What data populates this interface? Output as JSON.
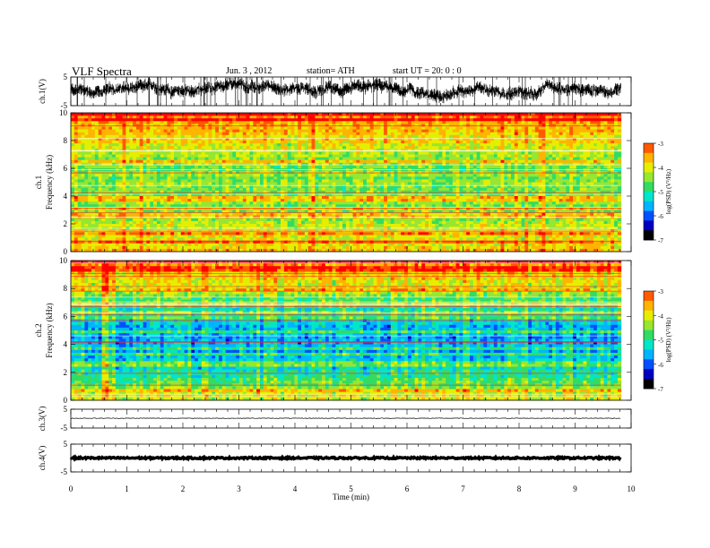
{
  "header": {
    "title": "VLF  Spectra",
    "date": "Jun. 3  , 2012",
    "station": "station= ATH",
    "start": "start  UT  =   20: 0  : 0"
  },
  "colors": {
    "scale": [
      "#000000",
      "#0000c0",
      "#0050ff",
      "#00b4ff",
      "#00e6c8",
      "#32dc64",
      "#96e632",
      "#e6ee00",
      "#ffb400",
      "#ff5a00",
      "#ff0000",
      "#ff8c8c",
      "#ffd2d2",
      "#ffffff"
    ]
  },
  "chart_data": [
    {
      "type": "line",
      "panel": "ch1-waveform",
      "ylabel": "ch.1(V)",
      "yticks": [
        "5",
        "-5"
      ],
      "ylim": [
        -5,
        5
      ],
      "xlim": [
        0,
        10
      ],
      "description_values": {
        "signal_range": [
          -5,
          5
        ],
        "mean_level": 0.5
      }
    },
    {
      "type": "heatmap",
      "panel": "ch1-spectrogram",
      "ylabel_channel": "ch.1",
      "ylabel": "Frequency  (kHz)",
      "yticks": [
        "0",
        "2",
        "4",
        "6",
        "8",
        "10"
      ],
      "ylim": [
        0,
        10
      ],
      "xlim": [
        0,
        10
      ],
      "colorbar": {
        "label": "log(PSD) (V²/Hz)",
        "ticks": [
          "-3",
          "-4",
          "-5",
          "-6",
          "-7"
        ],
        "range": [
          -7,
          -3
        ]
      },
      "profile_kHz": [
        [
          0,
          -3.7
        ],
        [
          1,
          -4.0
        ],
        [
          2,
          -4.2
        ],
        [
          3,
          -4.5
        ],
        [
          4,
          -4.4
        ],
        [
          5,
          -4.5
        ],
        [
          6,
          -4.5
        ],
        [
          7,
          -4.3
        ],
        [
          8,
          -3.9
        ],
        [
          9,
          -3.6
        ],
        [
          10,
          -3.3
        ]
      ]
    },
    {
      "type": "heatmap",
      "panel": "ch2-spectrogram",
      "ylabel_channel": "ch.2",
      "ylabel": "Frequency  (kHz)",
      "yticks": [
        "0",
        "2",
        "4",
        "6",
        "8",
        "10"
      ],
      "ylim": [
        0,
        10
      ],
      "xlim": [
        0,
        10
      ],
      "colorbar": {
        "label": "log(PSD) (V²/Hz)",
        "ticks": [
          "-3",
          "-4",
          "-5",
          "-6",
          "-7"
        ],
        "range": [
          -7,
          -3
        ]
      },
      "profile_kHz": [
        [
          0,
          -3.9
        ],
        [
          1,
          -4.5
        ],
        [
          2,
          -5.0
        ],
        [
          3,
          -5.4
        ],
        [
          4,
          -5.6
        ],
        [
          5,
          -5.5
        ],
        [
          6,
          -5.2
        ],
        [
          7,
          -4.8
        ],
        [
          8,
          -4.2
        ],
        [
          9,
          -3.7
        ],
        [
          10,
          -3.4
        ]
      ]
    },
    {
      "type": "line",
      "panel": "ch3-waveform",
      "ylabel": "ch.3(V)",
      "yticks": [
        "5",
        "-5"
      ],
      "ylim": [
        -5,
        5
      ],
      "xlim": [
        0,
        10
      ],
      "level": 0.2
    },
    {
      "type": "line",
      "panel": "ch4-waveform",
      "ylabel": "ch.4(V)",
      "yticks": [
        "5",
        "-5"
      ],
      "ylim": [
        -5,
        5
      ],
      "xlim": [
        0,
        10
      ],
      "level": 0
    }
  ],
  "xaxis": {
    "label": "Time  (min)",
    "ticks": [
      "0",
      "1",
      "2",
      "3",
      "4",
      "5",
      "6",
      "7",
      "8",
      "9",
      "10"
    ],
    "data_end": 9.82
  }
}
